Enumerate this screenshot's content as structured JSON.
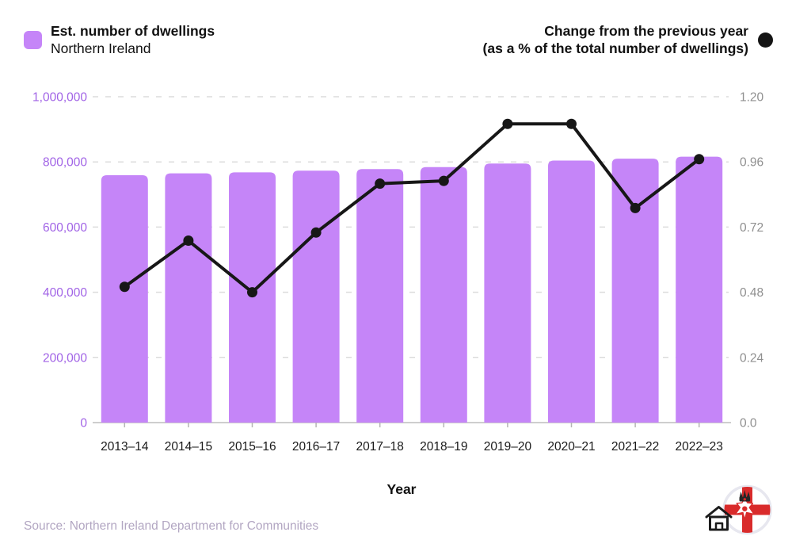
{
  "legend_left": {
    "title": "Est. number of dwellings",
    "subtitle": "Northern Ireland",
    "swatch_color": "#c585f8"
  },
  "legend_right": {
    "line1": "Change from the previous year",
    "line2": "(as a % of the total number of dwellings)",
    "marker_color": "#141414"
  },
  "chart_data": {
    "type": "combo",
    "categories": [
      "2013–14",
      "2014–15",
      "2015–16",
      "2016–17",
      "2017–18",
      "2018–19",
      "2019–20",
      "2020–21",
      "2021–22",
      "2022–23"
    ],
    "series": [
      {
        "name": "Est. number of dwellings — Northern Ireland",
        "type": "bar",
        "axis": "left",
        "color": "#c585f8",
        "values": [
          759000,
          765000,
          768000,
          773000,
          778000,
          784000,
          795000,
          804000,
          810000,
          816000
        ]
      },
      {
        "name": "Change from the previous year (as a % of the total number of dwellings)",
        "type": "line",
        "axis": "right",
        "color": "#171717",
        "values": [
          0.5,
          0.67,
          0.48,
          0.7,
          0.88,
          0.89,
          1.1,
          1.1,
          0.79,
          0.97
        ]
      }
    ],
    "left_axis": {
      "min": 0,
      "max": 1000000,
      "color": "#a163e6",
      "ticks": [
        {
          "value": 0,
          "label": "0"
        },
        {
          "value": 200000,
          "label": "200,000"
        },
        {
          "value": 400000,
          "label": "400,000"
        },
        {
          "value": 600000,
          "label": "600,000"
        },
        {
          "value": 800000,
          "label": "800,000"
        },
        {
          "value": 1000000,
          "label": "1,000,000"
        }
      ]
    },
    "right_axis": {
      "min": 0,
      "max": 1.2,
      "color": "#8f8f8f",
      "ticks": [
        {
          "value": 0,
          "label": "0.0"
        },
        {
          "value": 0.24,
          "label": "0.24"
        },
        {
          "value": 0.48,
          "label": "0.48"
        },
        {
          "value": 0.72,
          "label": "0.72"
        },
        {
          "value": 0.96,
          "label": "0.96"
        },
        {
          "value": 1.2,
          "label": "1.20"
        }
      ]
    },
    "xlabel": "Year",
    "grid": "horizontal-dashed",
    "legend_position": "top"
  },
  "footer": {
    "source": "Source: Northern Ireland Department for Communities"
  },
  "icons": {
    "logo": "northern-ireland-flag-with-house-logo"
  }
}
